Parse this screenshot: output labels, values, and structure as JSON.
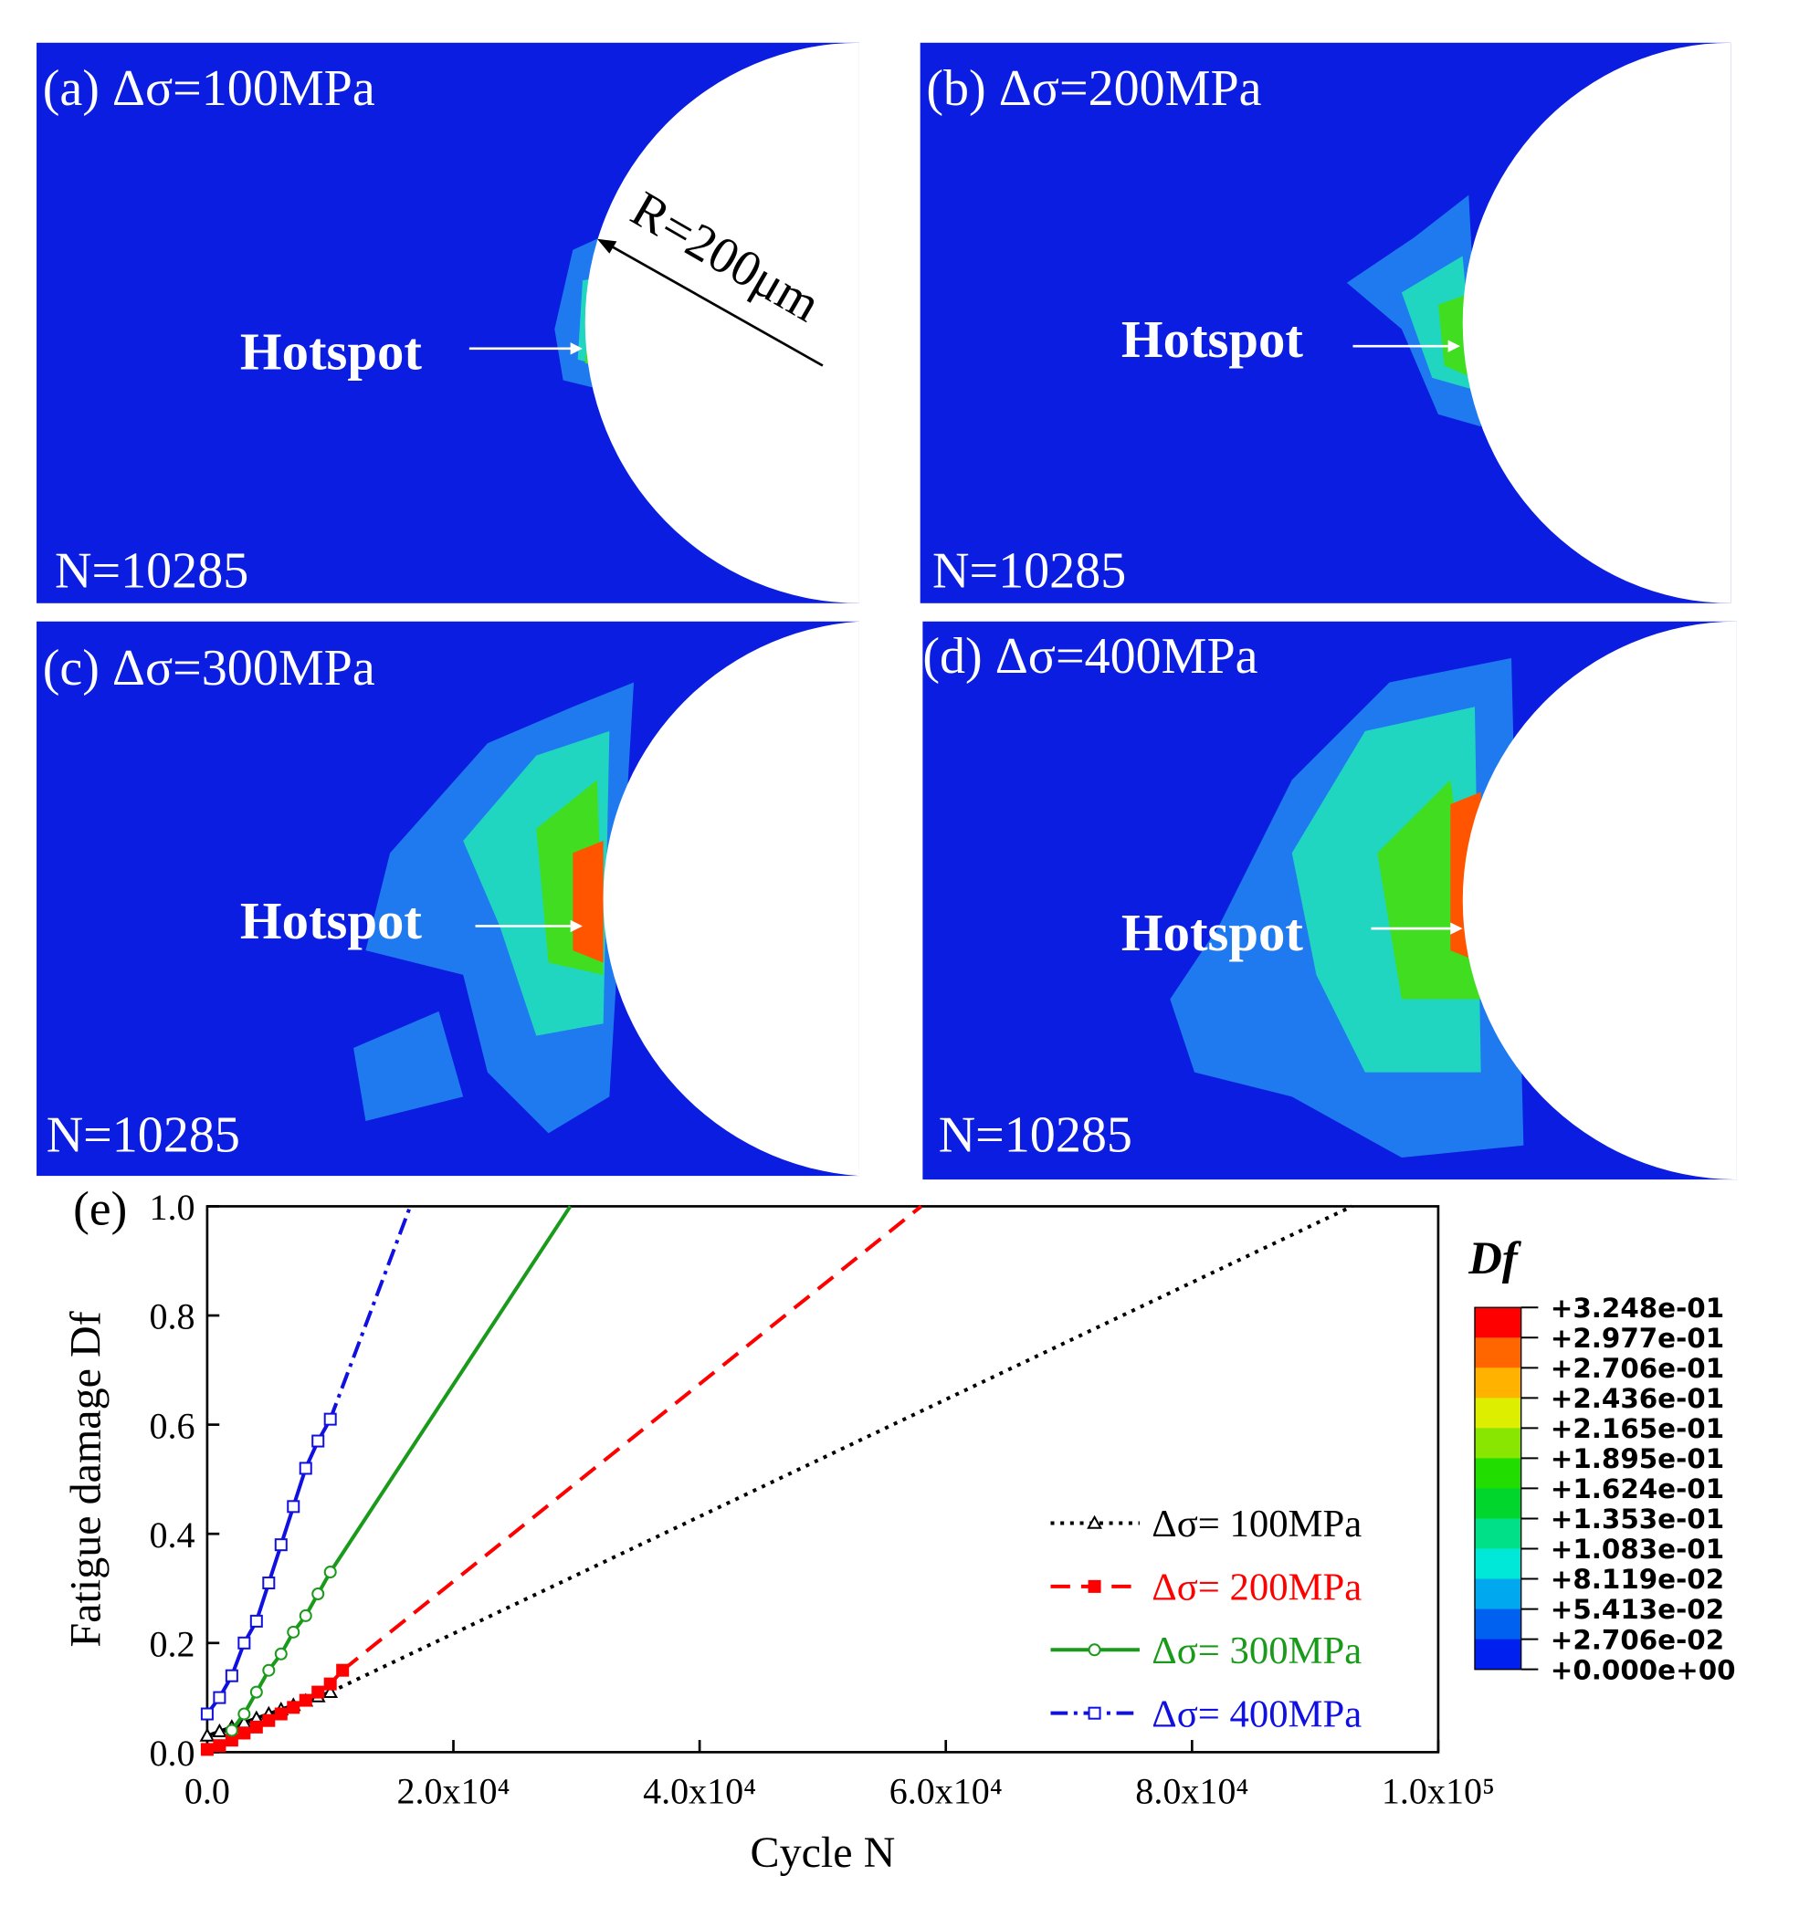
{
  "panels": [
    {
      "label": "(a) Δσ=100MPa",
      "hotspot": "Hotspot",
      "cycles": "N=10285",
      "annotation": "R=200μm"
    },
    {
      "label": "(b) Δσ=200MPa",
      "hotspot": "Hotspot",
      "cycles": "N=10285"
    },
    {
      "label": "(c) Δσ=300MPa",
      "hotspot": "Hotspot",
      "cycles": "N=10285"
    },
    {
      "label": "(d) Δσ=400MPa",
      "hotspot": "Hotspot",
      "cycles": "N=10285"
    }
  ],
  "chart_data": {
    "type": "line",
    "title": "(e)",
    "xlabel": "Cycle N",
    "ylabel": "Fatigue damage Df",
    "xlim": [
      0,
      100000
    ],
    "ylim": [
      0,
      1
    ],
    "xticks": [
      {
        "value": 0,
        "label": "0.0"
      },
      {
        "value": 20000,
        "label": "2.0x10⁴"
      },
      {
        "value": 40000,
        "label": "4.0x10⁴"
      },
      {
        "value": 60000,
        "label": "6.0x10⁴"
      },
      {
        "value": 80000,
        "label": "8.0x10⁴"
      },
      {
        "value": 100000,
        "label": "1.0x10⁵"
      }
    ],
    "yticks": [
      {
        "value": 0,
        "label": "0.0"
      },
      {
        "value": 0.2,
        "label": "0.2"
      },
      {
        "value": 0.4,
        "label": "0.4"
      },
      {
        "value": 0.6,
        "label": "0.6"
      },
      {
        "value": 0.8,
        "label": "0.8"
      },
      {
        "value": 1,
        "label": "1.0"
      }
    ],
    "legend": "lower right",
    "series": [
      {
        "name": "Δσ= 100MPa",
        "color": "#000000",
        "dash": "dotted",
        "marker": "triangle",
        "marker_fill": "none",
        "x": [
          0,
          1000,
          2000,
          3000,
          4000,
          5000,
          6000,
          7000,
          8000,
          9000,
          10000
        ],
        "values": [
          0.03,
          0.038,
          0.046,
          0.054,
          0.062,
          0.07,
          0.078,
          0.086,
          0.094,
          0.102,
          0.11
        ],
        "extrapolation": {
          "x": [
            10000,
            93000
          ],
          "values": [
            0.11,
            1
          ]
        }
      },
      {
        "name": "Δσ= 200MPa",
        "color": "#ff0000",
        "dash": "dashed",
        "marker": "square",
        "marker_fill": "filled",
        "x": [
          0,
          1000,
          2000,
          3000,
          4000,
          5000,
          6000,
          7000,
          8000,
          9000,
          10000,
          11000
        ],
        "values": [
          0.005,
          0.012,
          0.022,
          0.035,
          0.046,
          0.058,
          0.07,
          0.082,
          0.095,
          0.11,
          0.125,
          0.15
        ],
        "extrapolation": {
          "x": [
            11000,
            58000
          ],
          "values": [
            0.15,
            1
          ]
        }
      },
      {
        "name": "Δσ= 300MPa",
        "color": "#1a9a1a",
        "dash": "solid",
        "marker": "circle",
        "marker_fill": "none",
        "x": [
          2000,
          3000,
          4000,
          5000,
          6000,
          7000,
          8000,
          9000,
          10000
        ],
        "values": [
          0.04,
          0.07,
          0.11,
          0.15,
          0.18,
          0.22,
          0.25,
          0.29,
          0.33
        ],
        "extrapolation": {
          "x": [
            10000,
            29500
          ],
          "values": [
            0.33,
            1
          ]
        }
      },
      {
        "name": "Δσ= 400MPa",
        "color": "#1010e0",
        "dash": "dashdot",
        "marker": "square",
        "marker_fill": "none",
        "x": [
          0,
          1000,
          2000,
          3000,
          4000,
          5000,
          6000,
          7000,
          8000,
          9000,
          10000
        ],
        "values": [
          0.07,
          0.1,
          0.14,
          0.2,
          0.24,
          0.31,
          0.38,
          0.45,
          0.52,
          0.57,
          0.61
        ],
        "extrapolation": {
          "x": [
            10000,
            16500
          ],
          "values": [
            0.61,
            1
          ]
        }
      }
    ]
  },
  "colorbar": {
    "title": "Df",
    "colors": [
      "#ff0000",
      "#ff6600",
      "#ffb300",
      "#ddee00",
      "#88e600",
      "#22dd00",
      "#00d62b",
      "#00e088",
      "#00e8d8",
      "#00a8f0",
      "#0060f0",
      "#0020f0"
    ],
    "ticks": [
      {
        "value": 0.3248,
        "label": "+3.248e-01"
      },
      {
        "value": 0.2977,
        "label": "+2.977e-01"
      },
      {
        "value": 0.2706,
        "label": "+2.706e-01"
      },
      {
        "value": 0.2436,
        "label": "+2.436e-01"
      },
      {
        "value": 0.2165,
        "label": "+2.165e-01"
      },
      {
        "value": 0.1895,
        "label": "+1.895e-01"
      },
      {
        "value": 0.1624,
        "label": "+1.624e-01"
      },
      {
        "value": 0.1353,
        "label": "+1.353e-01"
      },
      {
        "value": 0.1083,
        "label": "+1.083e-01"
      },
      {
        "value": 0.08119,
        "label": "+8.119e-02"
      },
      {
        "value": 0.05413,
        "label": "+5.413e-02"
      },
      {
        "value": 0.02706,
        "label": "+2.706e-02"
      },
      {
        "value": 0,
        "label": "+0.000e+00"
      }
    ]
  }
}
